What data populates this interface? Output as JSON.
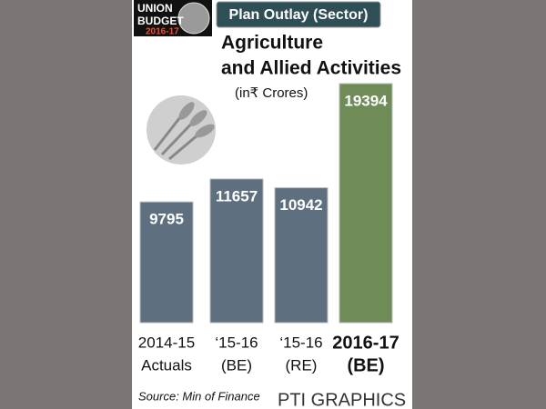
{
  "chart_data": {
    "type": "bar",
    "logo": [
      "UNION",
      "BUDGET",
      "2016-17"
    ],
    "header": "Plan Outlay (Sector)",
    "title": [
      "Agriculture",
      "and Allied Activities"
    ],
    "subtitle": "(in₹ Crores)",
    "categories": [
      [
        "2014-15",
        "Actuals"
      ],
      [
        "‘15-16",
        "(BE)"
      ],
      [
        "‘15-16",
        "(RE)"
      ],
      [
        "2016-17",
        "(BE)"
      ]
    ],
    "values": [
      9795,
      11657,
      10942,
      19394
    ],
    "colors": [
      "#5e6f7f",
      "#5e6f7f",
      "#5e6f7f",
      "#6f8c58"
    ],
    "source": "Source: Min of Finance",
    "credit": "PTI GRAPHICS"
  }
}
